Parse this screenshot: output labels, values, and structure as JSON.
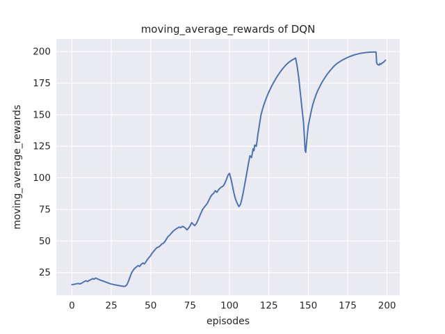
{
  "chart_data": {
    "type": "line",
    "title": "moving_average_rewards of DQN",
    "xlabel": "episodes",
    "ylabel": "moving_average_rewards",
    "x_ticks": [
      0,
      25,
      50,
      75,
      100,
      125,
      150,
      175,
      200
    ],
    "y_ticks": [
      25,
      50,
      75,
      100,
      125,
      150,
      175,
      200
    ],
    "xlim": [
      -9.9,
      208.1
    ],
    "ylim": [
      7.0,
      210.0
    ],
    "grid": true,
    "legend": "none",
    "colors": {
      "line": "#4c72b0",
      "plot_background": "#eaeaf2",
      "figure_background": "#ffffff",
      "gridline": "#ffffff",
      "text": "#262626"
    },
    "series": [
      {
        "name": "moving_average_rewards",
        "points": [
          [
            0,
            15.5
          ],
          [
            1,
            15.6
          ],
          [
            2,
            15.8
          ],
          [
            3,
            16.1
          ],
          [
            4,
            16.3
          ],
          [
            5,
            16.0
          ],
          [
            6,
            16.4
          ],
          [
            7,
            17.2
          ],
          [
            8,
            18.0
          ],
          [
            9,
            18.4
          ],
          [
            10,
            17.9
          ],
          [
            11,
            18.8
          ],
          [
            12,
            19.3
          ],
          [
            13,
            20.2
          ],
          [
            14,
            19.7
          ],
          [
            15,
            20.6
          ],
          [
            16,
            20.1
          ],
          [
            17,
            19.5
          ],
          [
            18,
            19.0
          ],
          [
            19,
            18.6
          ],
          [
            20,
            18.2
          ],
          [
            21,
            17.7
          ],
          [
            22,
            17.2
          ],
          [
            23,
            16.7
          ],
          [
            24,
            16.3
          ],
          [
            25,
            15.9
          ],
          [
            26,
            15.6
          ],
          [
            27,
            15.3
          ],
          [
            28,
            15.1
          ],
          [
            29,
            14.8
          ],
          [
            30,
            14.6
          ],
          [
            31,
            14.4
          ],
          [
            32,
            14.2
          ],
          [
            33,
            14.0
          ],
          [
            34,
            14.2
          ],
          [
            35,
            15.5
          ],
          [
            36,
            18.5
          ],
          [
            37,
            22.0
          ],
          [
            38,
            25.0
          ],
          [
            39,
            27.0
          ],
          [
            40,
            28.5
          ],
          [
            41,
            29.5
          ],
          [
            42,
            30.5
          ],
          [
            43,
            29.8
          ],
          [
            44,
            31.5
          ],
          [
            45,
            32.5
          ],
          [
            46,
            31.8
          ],
          [
            47,
            33.5
          ],
          [
            48,
            35.5
          ],
          [
            49,
            37.0
          ],
          [
            50,
            38.5
          ],
          [
            51,
            40.5
          ],
          [
            52,
            42.0
          ],
          [
            53,
            43.5
          ],
          [
            54,
            44.8
          ],
          [
            55,
            45.2
          ],
          [
            56,
            46.2
          ],
          [
            57,
            47.5
          ],
          [
            58,
            48.2
          ],
          [
            59,
            49.5
          ],
          [
            60,
            51.5
          ],
          [
            61,
            53.5
          ],
          [
            62,
            54.5
          ],
          [
            63,
            56.0
          ],
          [
            64,
            57.5
          ],
          [
            65,
            58.5
          ],
          [
            66,
            59.5
          ],
          [
            67,
            60.2
          ],
          [
            68,
            61.0
          ],
          [
            69,
            60.5
          ],
          [
            70,
            61.5
          ],
          [
            71,
            61.2
          ],
          [
            72,
            60.2
          ],
          [
            73,
            58.8
          ],
          [
            74,
            60.0
          ],
          [
            75,
            62.0
          ],
          [
            76,
            64.5
          ],
          [
            77,
            63.2
          ],
          [
            78,
            62.2
          ],
          [
            79,
            63.8
          ],
          [
            80,
            66.5
          ],
          [
            81,
            69.5
          ],
          [
            82,
            72.5
          ],
          [
            83,
            75.0
          ],
          [
            84,
            76.8
          ],
          [
            85,
            78.2
          ],
          [
            86,
            80.0
          ],
          [
            87,
            82.5
          ],
          [
            88,
            85.0
          ],
          [
            89,
            86.8
          ],
          [
            90,
            87.8
          ],
          [
            91,
            89.8
          ],
          [
            92,
            88.5
          ],
          [
            93,
            90.5
          ],
          [
            94,
            91.8
          ],
          [
            95,
            92.8
          ],
          [
            96,
            93.5
          ],
          [
            97,
            95.5
          ],
          [
            98,
            98.5
          ],
          [
            99,
            102.0
          ],
          [
            100,
            103.5
          ],
          [
            101,
            99.0
          ],
          [
            102,
            93.0
          ],
          [
            103,
            87.0
          ],
          [
            104,
            82.5
          ],
          [
            105,
            79.5
          ],
          [
            106,
            77.2
          ],
          [
            107,
            79.0
          ],
          [
            108,
            84.0
          ],
          [
            109,
            90.0
          ],
          [
            110,
            97.0
          ],
          [
            111,
            104.0
          ],
          [
            112,
            111.0
          ],
          [
            113,
            117.5
          ],
          [
            114,
            116.0
          ],
          [
            114.5,
            119.5
          ],
          [
            115,
            123.0
          ],
          [
            115.5,
            121.5
          ],
          [
            116,
            126.0
          ],
          [
            117,
            125.0
          ],
          [
            117.5,
            129.0
          ],
          [
            118,
            134.0
          ],
          [
            119,
            142.0
          ],
          [
            120,
            150.0
          ],
          [
            121,
            154.5
          ],
          [
            122,
            158.5
          ],
          [
            123,
            162.0
          ],
          [
            124,
            165.2
          ],
          [
            125,
            168.0
          ],
          [
            126,
            170.7
          ],
          [
            127,
            173.2
          ],
          [
            128,
            175.5
          ],
          [
            129,
            177.7
          ],
          [
            130,
            179.8
          ],
          [
            131,
            181.7
          ],
          [
            132,
            183.5
          ],
          [
            133,
            185.2
          ],
          [
            134,
            186.8
          ],
          [
            135,
            188.3
          ],
          [
            136,
            189.6
          ],
          [
            137,
            190.8
          ],
          [
            138,
            191.8
          ],
          [
            139,
            192.7
          ],
          [
            140,
            193.5
          ],
          [
            141,
            194.2
          ],
          [
            142,
            194.9
          ],
          [
            143,
            188.0
          ],
          [
            144,
            179.0
          ],
          [
            145,
            167.0
          ],
          [
            146,
            155.0
          ],
          [
            147,
            144.0
          ],
          [
            147.5,
            133.0
          ],
          [
            148,
            122.0
          ],
          [
            148.4,
            120.2
          ],
          [
            149,
            129.0
          ],
          [
            150,
            141.0
          ],
          [
            151,
            147.5
          ],
          [
            152,
            153.5
          ],
          [
            153,
            158.5
          ],
          [
            154,
            162.5
          ],
          [
            155,
            166.0
          ],
          [
            156,
            169.0
          ],
          [
            157,
            171.5
          ],
          [
            158,
            174.0
          ],
          [
            159,
            176.2
          ],
          [
            160,
            178.2
          ],
          [
            161,
            180.2
          ],
          [
            162,
            182.0
          ],
          [
            163,
            183.6
          ],
          [
            164,
            185.2
          ],
          [
            165,
            186.6
          ],
          [
            166,
            188.0
          ],
          [
            167,
            189.2
          ],
          [
            168,
            190.3
          ],
          [
            169,
            191.2
          ],
          [
            170,
            192.0
          ],
          [
            171,
            192.8
          ],
          [
            172,
            193.5
          ],
          [
            173,
            194.2
          ],
          [
            174,
            194.8
          ],
          [
            175,
            195.4
          ],
          [
            176,
            195.9
          ],
          [
            177,
            196.4
          ],
          [
            178,
            196.9
          ],
          [
            179,
            197.3
          ],
          [
            180,
            197.7
          ],
          [
            181,
            198.0
          ],
          [
            182,
            198.3
          ],
          [
            183,
            198.6
          ],
          [
            184,
            198.8
          ],
          [
            185,
            199.0
          ],
          [
            186,
            199.2
          ],
          [
            187,
            199.3
          ],
          [
            188,
            199.4
          ],
          [
            189,
            199.5
          ],
          [
            190,
            199.6
          ],
          [
            191,
            199.6
          ],
          [
            192,
            199.7
          ],
          [
            193,
            199.7
          ],
          [
            193.4,
            191.0
          ],
          [
            194,
            189.8
          ],
          [
            195,
            189.3
          ],
          [
            195.5,
            190.5
          ],
          [
            196,
            189.9
          ],
          [
            197,
            191.0
          ],
          [
            198,
            191.8
          ],
          [
            199,
            193.2
          ]
        ]
      }
    ]
  }
}
